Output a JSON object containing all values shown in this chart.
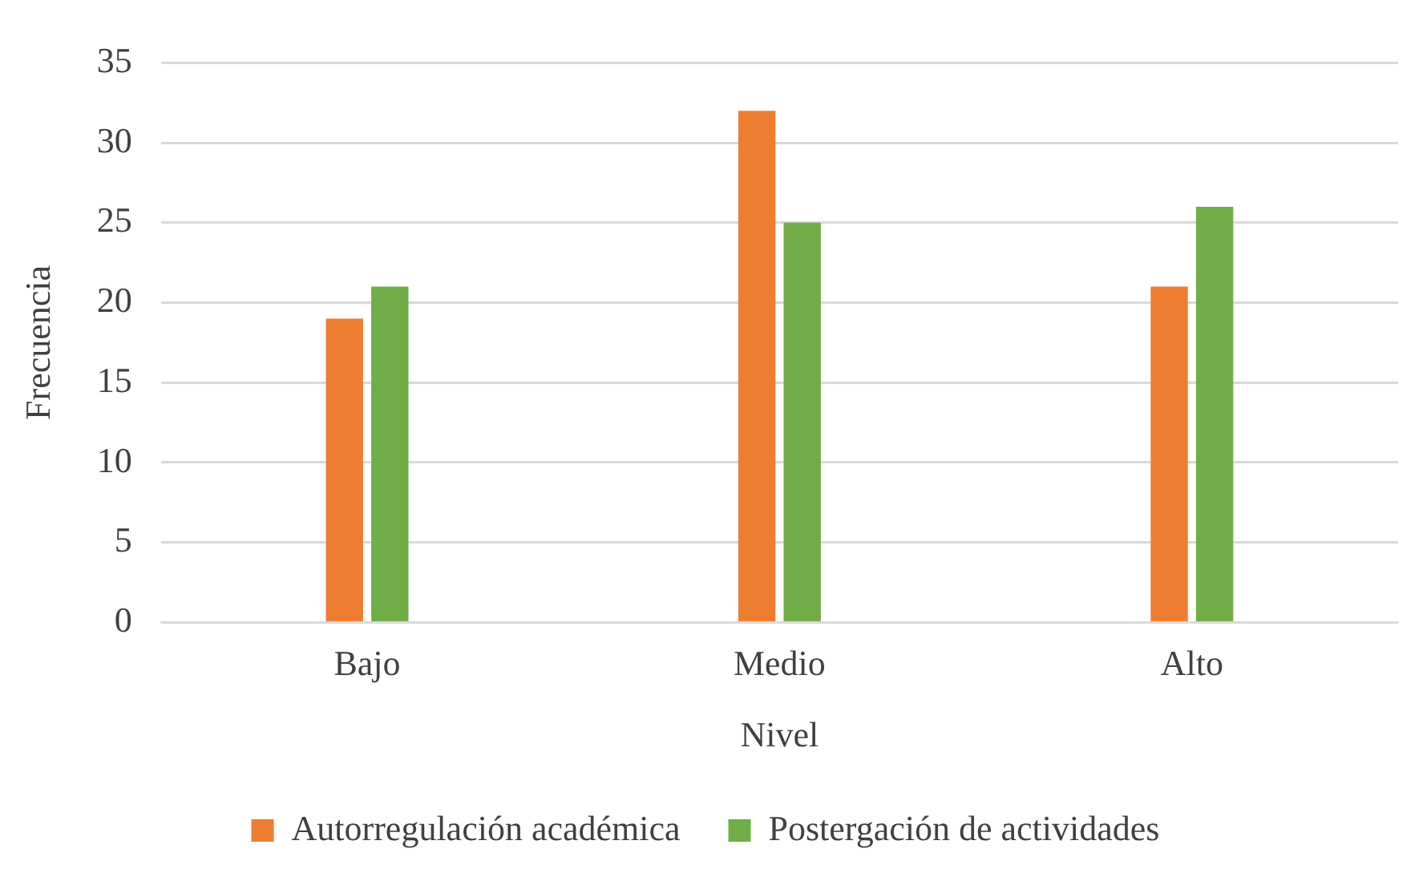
{
  "chart_data": {
    "type": "bar",
    "xlabel": "Nivel",
    "ylabel": "Frecuencia",
    "categories": [
      "Bajo",
      "Medio",
      "Alto"
    ],
    "series": [
      {
        "name": "Autorregulación académica",
        "color": "#ed7d31",
        "values": [
          19,
          32,
          21
        ]
      },
      {
        "name": "Postergación de actividades",
        "color": "#70ad47",
        "values": [
          21,
          25,
          26
        ]
      }
    ],
    "ylim": [
      0,
      35
    ],
    "yticks": [
      0,
      5,
      10,
      15,
      20,
      25,
      30,
      35
    ],
    "grid": "y",
    "legend": "bottom"
  }
}
